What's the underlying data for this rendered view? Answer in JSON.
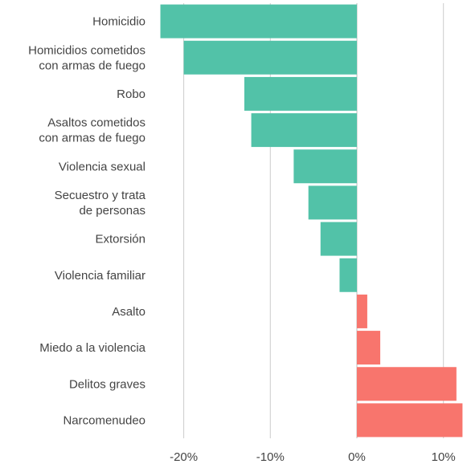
{
  "chart_data": {
    "type": "bar",
    "orientation": "horizontal",
    "categories": [
      [
        "Homicidio"
      ],
      [
        "Homicidios cometidos",
        "con armas de fuego"
      ],
      [
        "Robo"
      ],
      [
        "Asaltos cometidos",
        "con armas de fuego"
      ],
      [
        "Violencia sexual"
      ],
      [
        "Secuestro y trata",
        "de personas"
      ],
      [
        "Extorsión"
      ],
      [
        "Violencia familiar"
      ],
      [
        "Asalto"
      ],
      [
        "Miedo a la violencia"
      ],
      [
        "Delitos graves"
      ],
      [
        "Narcomenudeo"
      ]
    ],
    "values": [
      -22.7,
      -20.0,
      -13.0,
      -12.2,
      -7.3,
      -5.6,
      -4.2,
      -2.0,
      1.2,
      2.7,
      11.5,
      12.2
    ],
    "xlim": [
      -24,
      12.2
    ],
    "xticks": [
      -20,
      -10,
      0,
      10
    ],
    "xtick_labels": [
      "-20%",
      "-10%",
      "0%",
      "10%"
    ],
    "colors": {
      "negative": "#52c2a8",
      "positive": "#f8756d"
    },
    "grid": true,
    "title": "",
    "xlabel": "",
    "ylabel": ""
  }
}
